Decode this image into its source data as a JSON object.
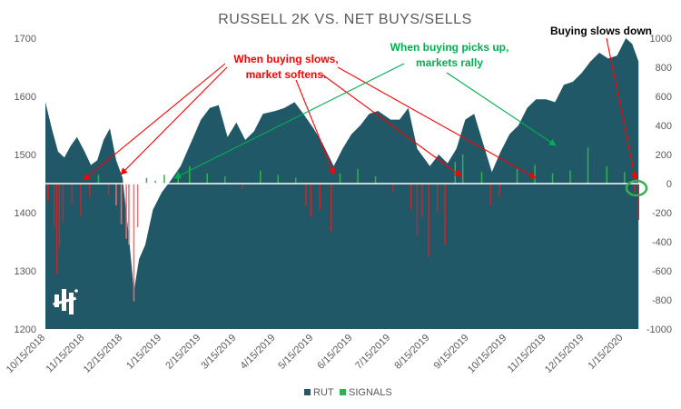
{
  "chart_data": {
    "type": "area",
    "title": "RUSSELL 2K VS. NET BUYS/SELLS",
    "xlabel": "",
    "ylabel": "",
    "left_axis": {
      "ylim": [
        1200,
        1700
      ],
      "ticks": [
        "1200",
        "1300",
        "1400",
        "1500",
        "1600",
        "1700"
      ]
    },
    "right_axis": {
      "ylim": [
        -1000,
        1000
      ],
      "ticks": [
        "-1000",
        "-800",
        "-600",
        "-400",
        "-200",
        "0",
        "200",
        "400",
        "600",
        "800",
        "1000"
      ]
    },
    "x_tick_labels": [
      "10/15/2018",
      "11/15/2018",
      "12/15/2018",
      "1/15/2019",
      "2/15/2019",
      "3/15/2019",
      "4/15/2019",
      "5/15/2019",
      "6/15/2019",
      "7/15/2019",
      "8/15/2019",
      "9/15/2019",
      "10/15/2019",
      "11/15/2019",
      "12/15/2019",
      "1/15/2020"
    ],
    "series": [
      {
        "name": "RUT",
        "axis": "left",
        "color": "#215867",
        "points": [
          [
            "10/15/2018",
            1590
          ],
          [
            "10/20/2018",
            1545
          ],
          [
            "10/25/2018",
            1505
          ],
          [
            "10/30/2018",
            1495
          ],
          [
            "11/4/2018",
            1515
          ],
          [
            "11/9/2018",
            1530
          ],
          [
            "11/15/2018",
            1505
          ],
          [
            "11/20/2018",
            1482
          ],
          [
            "11/25/2018",
            1490
          ],
          [
            "11/30/2018",
            1525
          ],
          [
            "12/5/2018",
            1545
          ],
          [
            "12/10/2018",
            1490
          ],
          [
            "12/15/2018",
            1460
          ],
          [
            "12/20/2018",
            1360
          ],
          [
            "12/24/2018",
            1265
          ],
          [
            "12/28/2018",
            1320
          ],
          [
            "1/2/2019",
            1345
          ],
          [
            "1/8/2019",
            1405
          ],
          [
            "1/15/2019",
            1435
          ],
          [
            "1/22/2019",
            1455
          ],
          [
            "1/30/2019",
            1480
          ],
          [
            "2/8/2019",
            1525
          ],
          [
            "2/15/2019",
            1560
          ],
          [
            "2/22/2019",
            1580
          ],
          [
            "3/1/2019",
            1585
          ],
          [
            "3/8/2019",
            1530
          ],
          [
            "3/15/2019",
            1555
          ],
          [
            "3/22/2019",
            1525
          ],
          [
            "3/29/2019",
            1540
          ],
          [
            "4/5/2019",
            1570
          ],
          [
            "4/15/2019",
            1575
          ],
          [
            "4/22/2019",
            1580
          ],
          [
            "4/30/2019",
            1590
          ],
          [
            "5/7/2019",
            1570
          ],
          [
            "5/15/2019",
            1545
          ],
          [
            "5/22/2019",
            1520
          ],
          [
            "5/31/2019",
            1480
          ],
          [
            "6/7/2019",
            1510
          ],
          [
            "6/14/2019",
            1535
          ],
          [
            "6/21/2019",
            1550
          ],
          [
            "6/28/2019",
            1570
          ],
          [
            "7/5/2019",
            1575
          ],
          [
            "7/15/2019",
            1560
          ],
          [
            "7/22/2019",
            1560
          ],
          [
            "7/29/2019",
            1580
          ],
          [
            "8/5/2019",
            1510
          ],
          [
            "8/15/2019",
            1480
          ],
          [
            "8/22/2019",
            1500
          ],
          [
            "8/29/2019",
            1485
          ],
          [
            "9/5/2019",
            1510
          ],
          [
            "9/12/2019",
            1560
          ],
          [
            "9/19/2019",
            1570
          ],
          [
            "9/26/2019",
            1520
          ],
          [
            "10/3/2019",
            1470
          ],
          [
            "10/10/2019",
            1505
          ],
          [
            "10/17/2019",
            1535
          ],
          [
            "10/24/2019",
            1550
          ],
          [
            "10/31/2019",
            1580
          ],
          [
            "11/7/2019",
            1595
          ],
          [
            "11/15/2019",
            1595
          ],
          [
            "11/22/2019",
            1590
          ],
          [
            "11/29/2019",
            1620
          ],
          [
            "12/6/2019",
            1625
          ],
          [
            "12/13/2019",
            1640
          ],
          [
            "12/20/2019",
            1660
          ],
          [
            "12/27/2019",
            1675
          ],
          [
            "1/3/2020",
            1665
          ],
          [
            "1/10/2020",
            1670
          ],
          [
            "1/17/2020",
            1700
          ],
          [
            "1/22/2020",
            1690
          ],
          [
            "1/27/2020",
            1660
          ]
        ]
      },
      {
        "name": "SIGNALS",
        "axis": "right",
        "color": "#33b050",
        "points": [
          [
            "10/17/2018",
            -120
          ],
          [
            "10/22/2018",
            -300
          ],
          [
            "10/24/2018",
            -620
          ],
          [
            "10/26/2018",
            -440
          ],
          [
            "10/29/2018",
            -260
          ],
          [
            "11/5/2018",
            -140
          ],
          [
            "11/12/2018",
            -220
          ],
          [
            "11/19/2018",
            -90
          ],
          [
            "11/26/2018",
            60
          ],
          [
            "12/4/2018",
            -80
          ],
          [
            "12/10/2018",
            -150
          ],
          [
            "12/14/2018",
            -280
          ],
          [
            "12/18/2018",
            -380
          ],
          [
            "12/20/2018",
            -420
          ],
          [
            "12/24/2018",
            -810
          ],
          [
            "12/27/2018",
            -300
          ],
          [
            "1/3/2019",
            40
          ],
          [
            "1/10/2019",
            20
          ],
          [
            "1/17/2019",
            60
          ],
          [
            "1/28/2019",
            80
          ],
          [
            "2/6/2019",
            120
          ],
          [
            "2/20/2019",
            70
          ],
          [
            "3/6/2019",
            50
          ],
          [
            "3/20/2019",
            -40
          ],
          [
            "4/3/2019",
            90
          ],
          [
            "4/17/2019",
            60
          ],
          [
            "5/1/2019",
            40
          ],
          [
            "5/9/2019",
            -150
          ],
          [
            "5/13/2019",
            -230
          ],
          [
            "5/20/2019",
            -180
          ],
          [
            "5/29/2019",
            -330
          ],
          [
            "6/5/2019",
            70
          ],
          [
            "6/19/2019",
            100
          ],
          [
            "7/3/2019",
            50
          ],
          [
            "7/17/2019",
            -60
          ],
          [
            "7/31/2019",
            -180
          ],
          [
            "8/5/2019",
            -360
          ],
          [
            "8/9/2019",
            -230
          ],
          [
            "8/14/2019",
            -500
          ],
          [
            "8/21/2019",
            -200
          ],
          [
            "8/27/2019",
            -420
          ],
          [
            "9/4/2019",
            150
          ],
          [
            "9/10/2019",
            200
          ],
          [
            "9/25/2019",
            80
          ],
          [
            "10/2/2019",
            -150
          ],
          [
            "10/9/2019",
            -90
          ],
          [
            "10/23/2019",
            100
          ],
          [
            "11/6/2019",
            130
          ],
          [
            "11/20/2019",
            70
          ],
          [
            "12/4/2019",
            90
          ],
          [
            "12/18/2019",
            250
          ],
          [
            "1/2/2020",
            120
          ],
          [
            "1/16/2020",
            80
          ],
          [
            "1/24/2020",
            -60
          ],
          [
            "1/27/2020",
            -250
          ]
        ]
      }
    ],
    "legend": {
      "position": "bottom",
      "entries": [
        "RUT",
        "SIGNALS"
      ]
    },
    "annotations": [
      {
        "lines": [
          "When buying slows,",
          "market softens."
        ],
        "color": "#ff0000"
      },
      {
        "lines": [
          "When buying picks up,",
          "markets rally"
        ],
        "color": "#00b050"
      },
      {
        "lines": [
          "Buying slows down"
        ],
        "color": "#000000"
      }
    ],
    "grid": false
  },
  "colors": {
    "rut_fill": "#215867",
    "signal_positive": "#33b050",
    "signal_negative": "#c0282d",
    "signal_negative_light": "#ff6666",
    "arrow_red": "#ff0000",
    "arrow_green": "#00b050",
    "axis_text": "#595959"
  },
  "logo": {
    "icon": "logo-icon"
  }
}
